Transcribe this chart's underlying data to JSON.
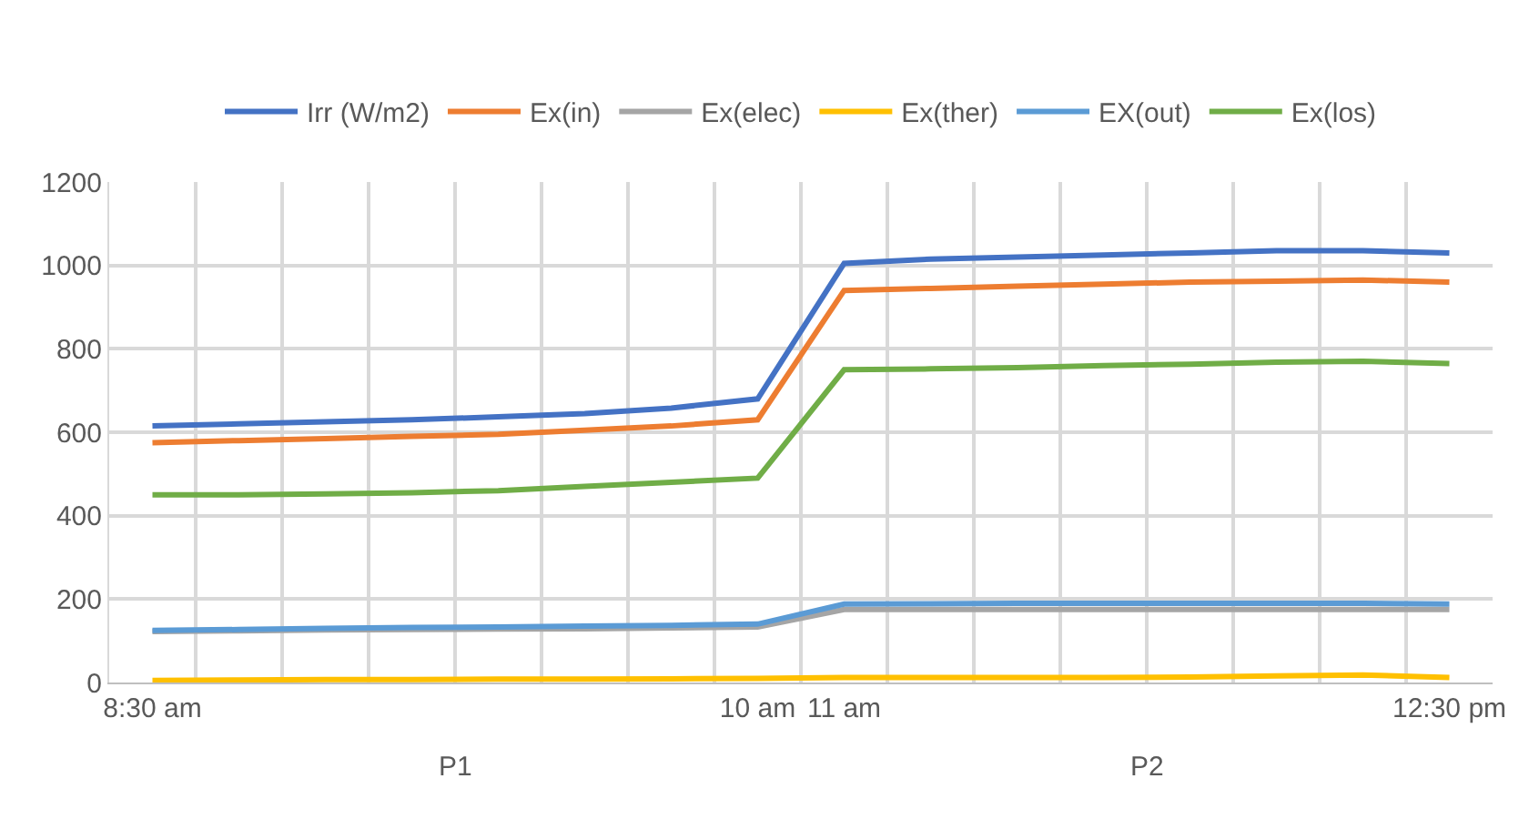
{
  "chart_data": {
    "type": "line",
    "categories": [
      "8:30 am",
      null,
      null,
      null,
      null,
      null,
      null,
      "10 am",
      "11 am",
      null,
      null,
      null,
      null,
      null,
      null,
      "12:30 pm"
    ],
    "series": [
      {
        "name": "Irr (W/m2)",
        "color": "#4472c4",
        "values": [
          615,
          620,
          625,
          630,
          637,
          645,
          658,
          680,
          1005,
          1015,
          1020,
          1025,
          1030,
          1035,
          1035,
          1030
        ]
      },
      {
        "name": "Ex(in)",
        "color": "#ed7d31",
        "values": [
          575,
          580,
          585,
          590,
          595,
          605,
          615,
          630,
          940,
          945,
          950,
          955,
          960,
          962,
          965,
          960
        ]
      },
      {
        "name": "Ex(elec)",
        "color": "#a5a5a5",
        "values": [
          122,
          124,
          126,
          127,
          128,
          129,
          131,
          133,
          175,
          175,
          175,
          175,
          175,
          175,
          175,
          175
        ]
      },
      {
        "name": "Ex(ther)",
        "color": "#ffc000",
        "values": [
          5,
          6,
          7,
          7,
          8,
          8,
          9,
          10,
          12,
          12,
          12,
          12,
          13,
          16,
          18,
          12
        ]
      },
      {
        "name": "EX(out)",
        "color": "#5b9bd5",
        "values": [
          125,
          127,
          130,
          132,
          133,
          135,
          137,
          140,
          188,
          189,
          190,
          190,
          190,
          190,
          190,
          188
        ]
      },
      {
        "name": "Ex(los)",
        "color": "#70ad47",
        "values": [
          450,
          450,
          452,
          455,
          460,
          470,
          480,
          490,
          750,
          752,
          755,
          760,
          763,
          768,
          770,
          765
        ]
      }
    ],
    "annotations": [
      "P1",
      "P2"
    ],
    "ylim": [
      0,
      1200
    ],
    "yticks": [
      0,
      200,
      400,
      600,
      800,
      1000,
      1200
    ],
    "grid": true,
    "legend": "top",
    "marker": "none",
    "line_style": "solid"
  }
}
